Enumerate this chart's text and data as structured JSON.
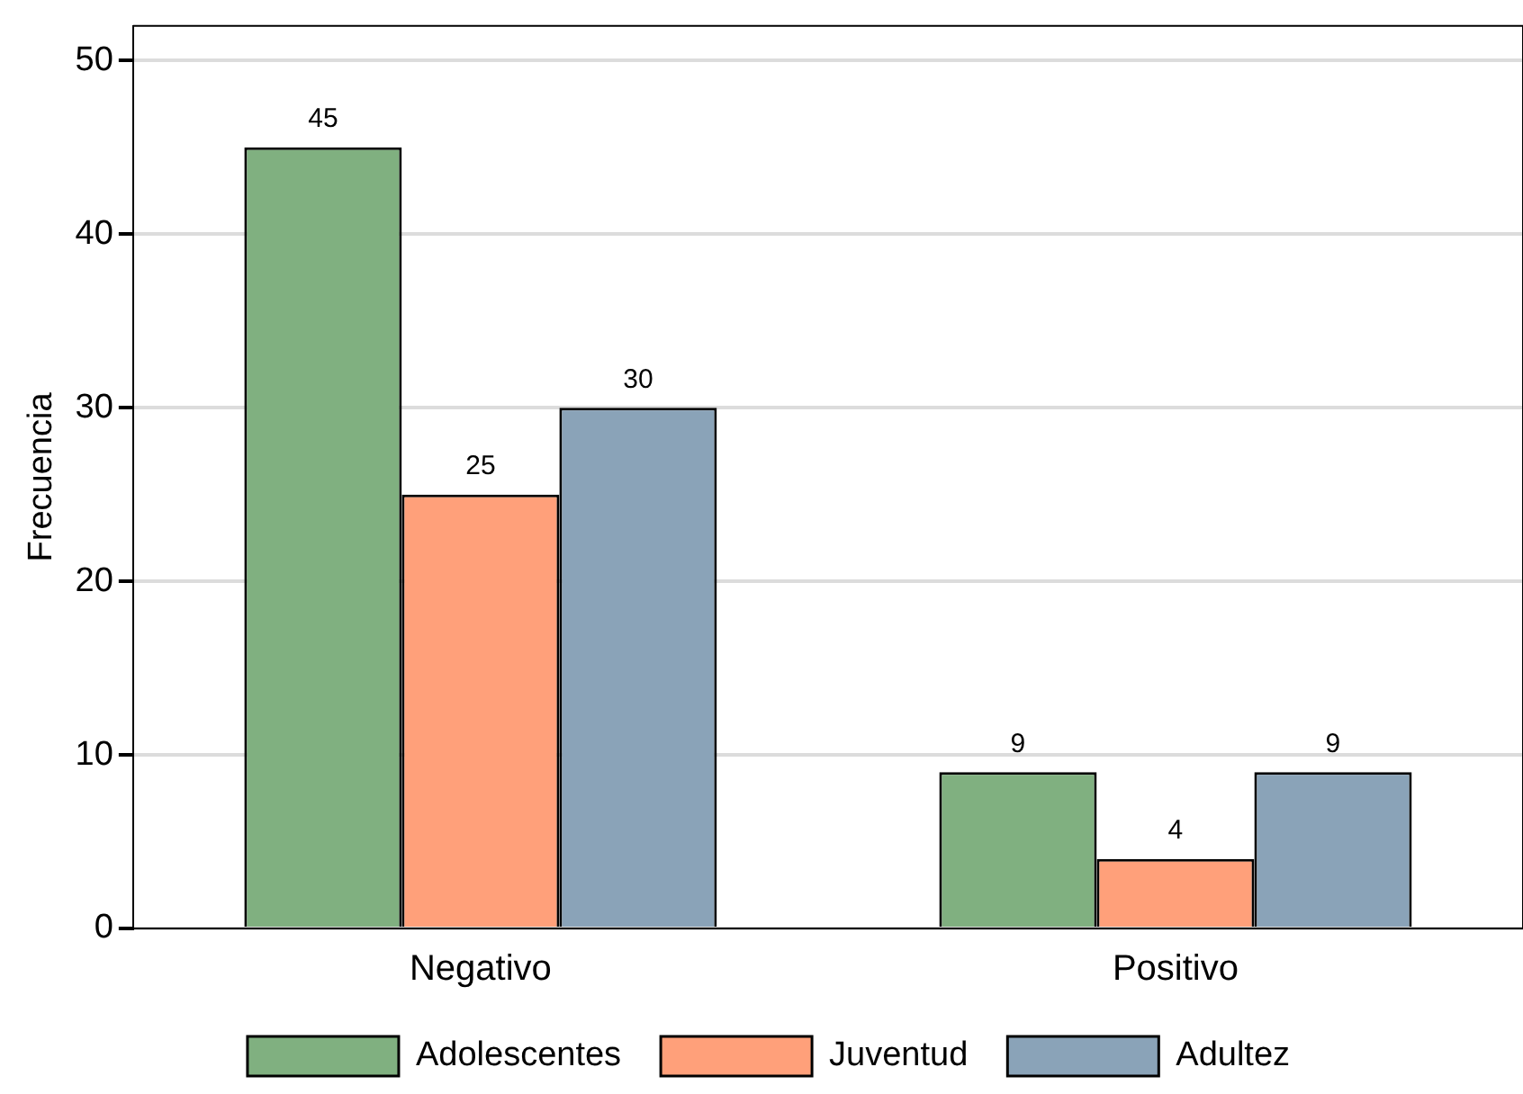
{
  "chart_data": {
    "type": "bar",
    "ylabel": "Frecuencia",
    "categories": [
      "Negativo",
      "Positivo"
    ],
    "series": [
      {
        "name": "Adolescentes",
        "color": "#80b080",
        "values": [
          45,
          9
        ]
      },
      {
        "name": "Juventud",
        "color": "#ffa07a",
        "values": [
          25,
          4
        ]
      },
      {
        "name": "Adultez",
        "color": "#8aa3b8",
        "values": [
          30,
          9
        ]
      }
    ],
    "ylim": [
      0,
      52
    ],
    "yticks": [
      0,
      10,
      20,
      30,
      40,
      50
    ],
    "grid": "y",
    "legend": "bottom",
    "data_labels": true
  }
}
